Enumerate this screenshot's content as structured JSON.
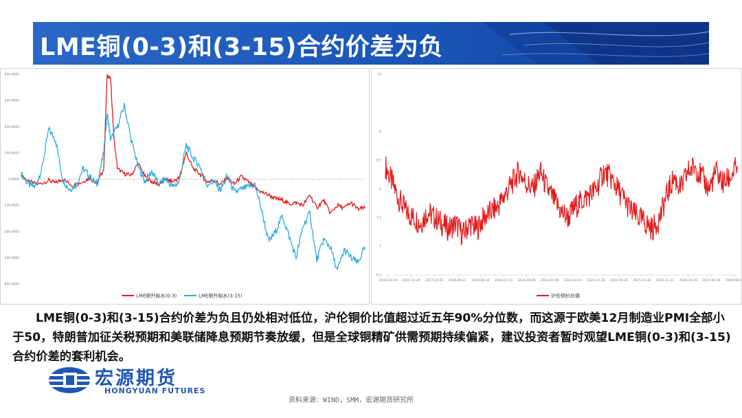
{
  "slide_title": "LME铜(0-3)和(3-15)合约价差为负",
  "paragraph": "LME铜(0-3)和(3-15)合约价差为负且仍处相对低位，沪伦铜价比值超过近五年90%分位数，而这源于欧美12月制造业PMI全部小于50，特朗普加征关税预期和美联储降息预期节奏放缓，但是全球铜精矿供需预期持续偏紧，建议投资者暂时观望LME铜(0-3)和(3-15)合约价差的套利机会。",
  "source_note": "资料来源：WIND，SMM，宏源期货研究所",
  "logo": {
    "cn": "宏源期货",
    "en": "HONGYUAN FUTURES"
  },
  "colors": {
    "title_bg": "#1f5dbf",
    "red_series": "#e31a1c",
    "blue_series": "#29abe2",
    "brand": "#1f57b5"
  },
  "chart_data": [
    {
      "type": "line",
      "title": "",
      "ylim": [
        -400,
        400
      ],
      "yticks": [
        "400.0000",
        "300.0000",
        "200.0000",
        "100.0000",
        "0.0000",
        "-100.0000",
        "-200.0000",
        "-300.0000",
        "-400.0000"
      ],
      "legend_placement": "bottom",
      "series": [
        {
          "name": "LME铜升贴水(0-3)",
          "color": "#e31a1c",
          "x": [
            0,
            2,
            5,
            8,
            10,
            12,
            15,
            18,
            20,
            22,
            24,
            25,
            26,
            27,
            28,
            30,
            32,
            34,
            36,
            38,
            40,
            42,
            44,
            46,
            48,
            50,
            52,
            54,
            56,
            58,
            60,
            62,
            64,
            66,
            68,
            70,
            72,
            74,
            76,
            78,
            80,
            82,
            84,
            86,
            88,
            90,
            92,
            94,
            96,
            98,
            100
          ],
          "y": [
            20,
            -10,
            -20,
            -5,
            -15,
            0,
            -25,
            -10,
            5,
            -20,
            40,
            400,
            380,
            150,
            40,
            20,
            15,
            60,
            10,
            -10,
            -20,
            0,
            -10,
            5,
            100,
            40,
            20,
            -10,
            -5,
            -20,
            5,
            -20,
            10,
            -10,
            -35,
            -50,
            -60,
            -75,
            -80,
            -95,
            -90,
            -100,
            -60,
            -110,
            -80,
            -130,
            -100,
            -110,
            -90,
            -115,
            -110
          ]
        },
        {
          "name": "LME铜升贴水(3-15)",
          "color": "#29abe2",
          "x": [
            0,
            2,
            4,
            6,
            8,
            10,
            12,
            14,
            16,
            18,
            20,
            22,
            24,
            25,
            26,
            28,
            30,
            32,
            34,
            36,
            38,
            40,
            42,
            44,
            46,
            48,
            50,
            52,
            54,
            56,
            58,
            60,
            62,
            64,
            66,
            68,
            70,
            72,
            74,
            76,
            78,
            80,
            82,
            84,
            86,
            88,
            90,
            92,
            94,
            96,
            98,
            100
          ],
          "y": [
            20,
            -20,
            -30,
            40,
            190,
            150,
            0,
            -40,
            -20,
            40,
            10,
            -20,
            100,
            250,
            150,
            200,
            280,
            150,
            50,
            -10,
            30,
            -20,
            0,
            -30,
            -10,
            130,
            80,
            50,
            -20,
            -10,
            -40,
            10,
            -50,
            -40,
            -30,
            -20,
            -120,
            -240,
            -200,
            -140,
            -220,
            -300,
            -180,
            -130,
            -310,
            -230,
            -260,
            -350,
            -270,
            -300,
            -320,
            -260
          ]
        }
      ]
    },
    {
      "type": "line",
      "title": "",
      "ylim": [
        6.5,
        10
      ],
      "yticks": [
        "10",
        "9",
        "8.5",
        "8",
        "7.5",
        "7",
        "6.5"
      ],
      "xticks": [
        "2016-01-04",
        "2016-11-29",
        "2017-10-25",
        "2018-09-21",
        "2019-08-19",
        "2020-07-15",
        "2021-06-09",
        "2022-05-06",
        "2023-04-03",
        "2023-10-28",
        "2024-09-26",
        "2025-01-26",
        "2025-11-23",
        "2026-10-20",
        "2027-09-18",
        "2028-08-15"
      ],
      "legend_placement": "bottom",
      "series": [
        {
          "name": "沪伦铜价比值",
          "color": "#e31a1c",
          "x": [
            0,
            2,
            4,
            6,
            8,
            10,
            12,
            14,
            16,
            18,
            20,
            22,
            24,
            26,
            28,
            30,
            32,
            34,
            36,
            38,
            40,
            42,
            44,
            46,
            48,
            50,
            52,
            54,
            56,
            58,
            60,
            62,
            64,
            66,
            68,
            70,
            72,
            74,
            76,
            78,
            80,
            82,
            84,
            86,
            88,
            90,
            92,
            94,
            96,
            98,
            100
          ],
          "y": [
            8.4,
            8.1,
            7.8,
            7.6,
            7.5,
            7.4,
            7.6,
            7.5,
            7.4,
            7.3,
            7.4,
            7.2,
            7.4,
            7.3,
            7.5,
            7.6,
            7.7,
            7.9,
            8.1,
            8.3,
            8.1,
            8.0,
            8.3,
            8.0,
            7.8,
            7.6,
            7.5,
            7.7,
            7.8,
            7.9,
            8.0,
            8.3,
            8.2,
            8.0,
            7.8,
            7.6,
            7.5,
            7.4,
            7.3,
            7.5,
            7.9,
            8.2,
            8.0,
            8.3,
            8.4,
            8.2,
            8.0,
            8.3,
            8.1,
            8.2,
            8.4
          ]
        }
      ]
    }
  ]
}
